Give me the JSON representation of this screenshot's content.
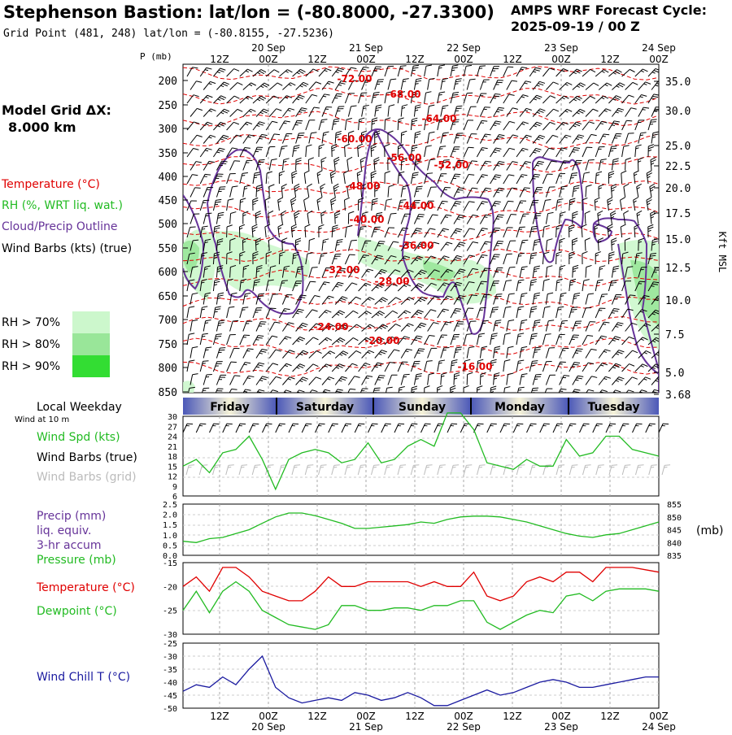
{
  "header": {
    "title": "Stephenson Bastion:  lat/lon = (-80.8000, -27.3300)",
    "subtitle": "Grid Point (481, 248) lat/lon = (-80.8155, -27.5236)",
    "cycle_line1": "AMPS WRF Forecast Cycle:",
    "cycle_line2": "2025-09-19 / 00  Z"
  },
  "sounding": {
    "p_axis_label": "P (mb)",
    "right_axis_label": "Kft MSL",
    "model_grid_label": "Model Grid ΔX:",
    "model_grid_value": "8.000 km",
    "legend": {
      "temperature": "Temperature (°C)",
      "rh": "RH (%, WRT liq. wat.)",
      "cloud": "Cloud/Precip Outline",
      "wind": "Wind Barbs (kts) (true)"
    },
    "rh_keys": [
      "RH > 70%",
      "RH > 80%",
      "RH > 90%"
    ],
    "pressure_ticks": [
      "200",
      "250",
      "300",
      "350",
      "400",
      "450",
      "500",
      "550",
      "600",
      "650",
      "700",
      "750",
      "800",
      "850"
    ],
    "height_ticks": [
      "35.0",
      "30.0",
      "25.0",
      "22.5",
      "20.0",
      "17.5",
      "15.0",
      "12.5",
      "10.0",
      "7.5",
      "5.0",
      "3.68"
    ],
    "temp_labels": [
      "-72.00",
      "-68.00",
      "-64.00",
      "-60.00",
      "-56.00",
      "-52.00",
      "-48.00",
      "-44.00",
      "-40.00",
      "-36.00",
      "-32.00",
      "-28.00",
      "-24.00",
      "-20.00",
      "-16.00"
    ]
  },
  "time_axis": {
    "top_hours": [
      "12Z",
      "00Z",
      "12Z",
      "00Z",
      "12Z",
      "00Z",
      "12Z",
      "00Z",
      "12Z",
      "00Z"
    ],
    "top_dates": [
      "20 Sep",
      "21 Sep",
      "22 Sep",
      "23 Sep",
      "24 Sep"
    ],
    "bottom_hours": [
      "12Z",
      "00Z",
      "12Z",
      "00Z",
      "12Z",
      "00Z",
      "12Z",
      "00Z",
      "12Z",
      "00Z"
    ],
    "bottom_dates": [
      "20 Sep",
      "21 Sep",
      "22 Sep",
      "23 Sep",
      "24 Sep"
    ]
  },
  "weekday": {
    "title": "Local Weekday",
    "wind_note": "Wind at 10 m",
    "days": [
      "Friday",
      "Saturday",
      "Sunday",
      "Monday",
      "Tuesday"
    ]
  },
  "panels": {
    "wind": {
      "label_speed": "Wind Spd (kts)",
      "label_barbs": "Wind Barbs (true)",
      "label_grid": "Wind Barbs (grid)",
      "y_ticks": [
        "30",
        "27",
        "24",
        "21",
        "18",
        "15",
        "12",
        "9",
        "6"
      ]
    },
    "precip": {
      "label1": "Precip (mm)",
      "label2": "liq. equiv.",
      "label3": "3-hr accum",
      "label4": "Pressure (mb)",
      "left_ticks": [
        "2.5",
        "2.0",
        "1.5",
        "1.0",
        "0.5",
        "0.0"
      ],
      "right_ticks": [
        "855",
        "850",
        "845",
        "840",
        "835"
      ],
      "right_unit": "(mb)"
    },
    "temp": {
      "label_t": "Temperature (°C)",
      "label_td": "Dewpoint (°C)",
      "y_ticks": [
        "-15",
        "-20",
        "-25",
        "-30"
      ]
    },
    "chill": {
      "label": "Wind Chill T (°C)",
      "y_ticks": [
        "-25",
        "-30",
        "-35",
        "-40",
        "-45",
        "-50"
      ]
    }
  },
  "colors": {
    "temperature": "#e00000",
    "rh": "#22bb22",
    "cloud": "#663399",
    "wind": "#000000",
    "wind_grid": "#bbbbbb",
    "chill": "#1a1aa0",
    "rh70": "#ccf7cc",
    "rh80": "#99e699",
    "rh90": "#33dd33"
  },
  "chart_data": [
    {
      "type": "line",
      "title": "Wind Spd (kts)",
      "x": [
        "12Z",
        "15Z",
        "18Z",
        "21Z",
        "00Z",
        "03Z",
        "06Z",
        "09Z",
        "12Z",
        "15Z",
        "18Z",
        "21Z",
        "00Z",
        "03Z",
        "06Z",
        "09Z",
        "12Z",
        "15Z",
        "18Z",
        "21Z",
        "00Z",
        "03Z",
        "06Z",
        "09Z",
        "12Z",
        "15Z",
        "18Z",
        "21Z",
        "00Z",
        "03Z",
        "06Z",
        "09Z",
        "12Z",
        "15Z",
        "18Z",
        "21Z",
        "00Z"
      ],
      "series": [
        {
          "name": "Wind Spd (kts)",
          "values": [
            15,
            17,
            13,
            19,
            20,
            24,
            17,
            8,
            17,
            19,
            20,
            19,
            16,
            17,
            22,
            16,
            17,
            21,
            23,
            21,
            31,
            31,
            26,
            16,
            15,
            14,
            17,
            15,
            15,
            23,
            18,
            19,
            24,
            24,
            20,
            19,
            18
          ]
        }
      ],
      "ylim": [
        6,
        30
      ]
    },
    {
      "type": "line",
      "title": "Pressure (mb)",
      "x": [
        "12Z",
        "15Z",
        "18Z",
        "21Z",
        "00Z",
        "03Z",
        "06Z",
        "09Z",
        "12Z",
        "15Z",
        "18Z",
        "21Z",
        "00Z",
        "03Z",
        "06Z",
        "09Z",
        "12Z",
        "15Z",
        "18Z",
        "21Z",
        "00Z",
        "03Z",
        "06Z",
        "09Z",
        "12Z",
        "15Z",
        "18Z",
        "21Z",
        "00Z",
        "03Z",
        "06Z",
        "09Z",
        "12Z",
        "15Z",
        "18Z",
        "21Z",
        "00Z"
      ],
      "series": [
        {
          "name": "Pressure (mb)",
          "values": [
            840.5,
            840,
            841.5,
            842,
            843.5,
            845,
            847.5,
            850,
            851.5,
            851.5,
            850.5,
            849,
            847.5,
            845.5,
            845.5,
            846,
            846.5,
            847,
            848,
            847.5,
            849,
            850,
            850.3,
            850.3,
            850,
            849,
            848,
            846.5,
            845,
            843.5,
            842.5,
            842,
            843,
            843.5,
            845,
            846.5,
            848
          ]
        }
      ],
      "ylim": [
        835,
        855
      ]
    },
    {
      "type": "line",
      "title": "Temperature / Dewpoint (°C)",
      "x": [
        "12Z",
        "15Z",
        "18Z",
        "21Z",
        "00Z",
        "03Z",
        "06Z",
        "09Z",
        "12Z",
        "15Z",
        "18Z",
        "21Z",
        "00Z",
        "03Z",
        "06Z",
        "09Z",
        "12Z",
        "15Z",
        "18Z",
        "21Z",
        "00Z",
        "03Z",
        "06Z",
        "09Z",
        "12Z",
        "15Z",
        "18Z",
        "21Z",
        "00Z",
        "03Z",
        "06Z",
        "09Z",
        "12Z",
        "15Z",
        "18Z",
        "21Z",
        "00Z"
      ],
      "series": [
        {
          "name": "Temperature (°C)",
          "values": [
            -20,
            -18,
            -21,
            -16,
            -16,
            -18,
            -21,
            -22,
            -23,
            -23,
            -21,
            -18,
            -20,
            -20,
            -19,
            -19,
            -19,
            -19,
            -20,
            -19,
            -20,
            -20,
            -17,
            -22,
            -23,
            -22,
            -19,
            -18,
            -19,
            -17,
            -17,
            -19,
            -16,
            -16,
            -16,
            -16.5,
            -17
          ]
        },
        {
          "name": "Dewpoint (°C)",
          "values": [
            -25,
            -21,
            -25.5,
            -21,
            -19,
            -21,
            -25,
            -26.5,
            -28,
            -28.5,
            -29,
            -28,
            -24,
            -24,
            -25,
            -25,
            -24.5,
            -24.5,
            -25,
            -24,
            -24,
            -23,
            -23,
            -27.5,
            -29,
            -27.5,
            -26,
            -25,
            -25.5,
            -22,
            -21.5,
            -23,
            -21,
            -20.5,
            -20.5,
            -20.5,
            -21
          ]
        }
      ],
      "ylim": [
        -30,
        -15
      ]
    },
    {
      "type": "line",
      "title": "Wind Chill T (°C)",
      "x": [
        "12Z",
        "15Z",
        "18Z",
        "21Z",
        "00Z",
        "03Z",
        "06Z",
        "09Z",
        "12Z",
        "15Z",
        "18Z",
        "21Z",
        "00Z",
        "03Z",
        "06Z",
        "09Z",
        "12Z",
        "15Z",
        "18Z",
        "21Z",
        "00Z",
        "03Z",
        "06Z",
        "09Z",
        "12Z",
        "15Z",
        "18Z",
        "21Z",
        "00Z",
        "03Z",
        "06Z",
        "09Z",
        "12Z",
        "15Z",
        "18Z",
        "21Z",
        "00Z"
      ],
      "series": [
        {
          "name": "Wind Chill T (°C)",
          "values": [
            -43.5,
            -41,
            -42,
            -38,
            -41,
            -35,
            -30,
            -42,
            -46,
            -48,
            -47,
            -46,
            -47,
            -44,
            -45,
            -47,
            -46,
            -44,
            -46,
            -49,
            -49,
            -47,
            -45,
            -43,
            -45,
            -44,
            -42,
            -40,
            -39,
            -40,
            -42,
            -42,
            -41,
            -40,
            -39,
            -38,
            -38
          ]
        }
      ],
      "ylim": [
        -50,
        -25
      ]
    }
  ]
}
